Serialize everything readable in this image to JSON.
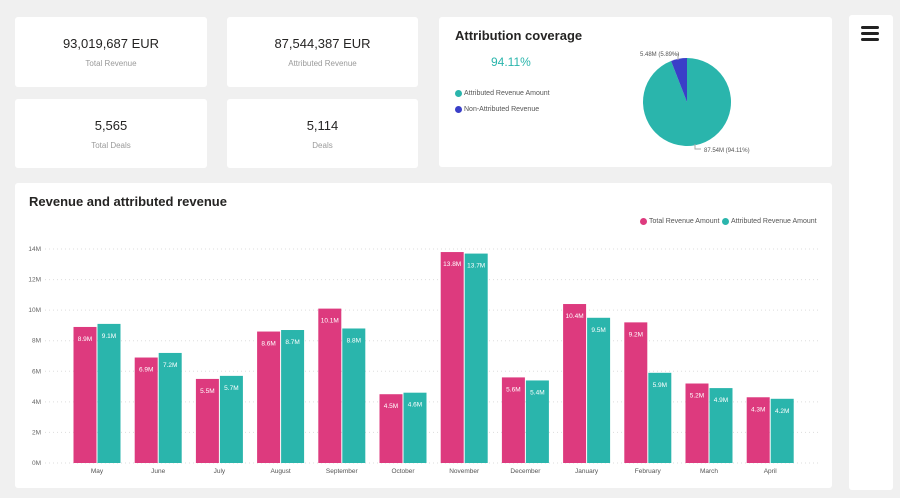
{
  "kpis": [
    {
      "value": "93,019,687 EUR",
      "label": "Total Revenue"
    },
    {
      "value": "87,544,387 EUR",
      "label": "Attributed Revenue"
    },
    {
      "value": "5,565",
      "label": "Total Deals"
    },
    {
      "value": "5,114",
      "label": "Deals"
    }
  ],
  "attribution": {
    "title": "Attribution coverage",
    "percent": "94.11%",
    "legend": [
      "Attributed Revenue Amount",
      "Non-Attributed Revenue"
    ],
    "colors": [
      "#2ab5ac",
      "#3a3fc8"
    ],
    "slices": [
      {
        "value": 87.54,
        "label": "87.54M (94.11%)"
      },
      {
        "value": 5.48,
        "label": "5.48M (5.89%)"
      }
    ]
  },
  "menu_icon": "hamburger-icon",
  "chart_data": {
    "type": "bar",
    "title": "Revenue and attributed revenue",
    "categories": [
      "May",
      "June",
      "July",
      "August",
      "September",
      "October",
      "November",
      "December",
      "January",
      "February",
      "March",
      "April"
    ],
    "series": [
      {
        "name": "Total Revenue Amount",
        "color": "#dd3a7e",
        "values": [
          8.9,
          6.9,
          5.5,
          8.6,
          10.1,
          4.5,
          13.8,
          5.6,
          10.4,
          9.2,
          5.2,
          4.3
        ],
        "labels": [
          "8.9M",
          "6.9M",
          "5.5M",
          "8.6M",
          "10.1M",
          "4.5M",
          "13.8M",
          "5.6M",
          "10.4M",
          "9.2M",
          "5.2M",
          "4.3M"
        ]
      },
      {
        "name": "Attributed Revenue Amount",
        "color": "#2ab5ac",
        "values": [
          9.1,
          7.2,
          5.7,
          8.7,
          8.8,
          4.6,
          13.7,
          5.4,
          9.5,
          5.9,
          4.9,
          4.2
        ],
        "labels": [
          "9.1M",
          "7.2M",
          "5.7M",
          "8.7M",
          "8.8M",
          "4.6M",
          "13.7M",
          "5.4M",
          "9.5M",
          "5.9M",
          "4.9M",
          "4.2M"
        ]
      }
    ],
    "yticks": [
      "0M",
      "2M",
      "4M",
      "6M",
      "8M",
      "10M",
      "12M",
      "14M"
    ],
    "ylim": [
      0,
      14
    ],
    "grid": true,
    "legend": "top-right"
  }
}
